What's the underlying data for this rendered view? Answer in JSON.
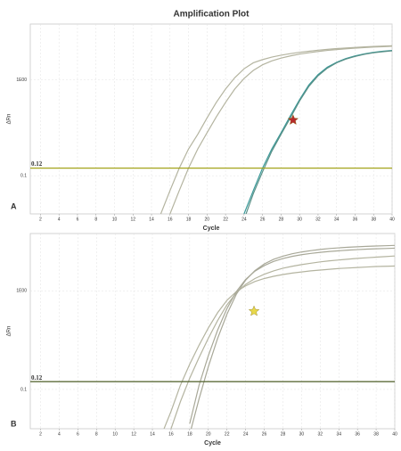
{
  "chart_data": [
    {
      "type": "line",
      "title": "Amplification Plot",
      "panel_label": "A",
      "xlabel": "Cycle",
      "ylabel": "ΔRn",
      "yscale": "log",
      "grid": true,
      "xlim": [
        0.9,
        40
      ],
      "ylim": [
        0.04,
        3.8
      ],
      "xticks": [
        2,
        4,
        6,
        8,
        10,
        12,
        14,
        16,
        18,
        20,
        22,
        24,
        26,
        28,
        30,
        32,
        34,
        36,
        38,
        40
      ],
      "yticks": [
        0.1,
        {
          "value": 1,
          "label": "1E00"
        }
      ],
      "threshold": 0.12,
      "threshold_label": "0.12",
      "threshold_color": "#a3a31c",
      "threshold_label_color": "#9b1c1c",
      "x": [
        14,
        15,
        16,
        17,
        18,
        19,
        20,
        21,
        22,
        23,
        24,
        25,
        26,
        27,
        28,
        29,
        30,
        31,
        32,
        33,
        34,
        35,
        36,
        37,
        38,
        39,
        40
      ],
      "series": [
        {
          "color": "#b4b4a0",
          "values": [
            null,
            0.04,
            0.07,
            0.12,
            0.19,
            0.27,
            0.4,
            0.58,
            0.8,
            1.05,
            1.3,
            1.5,
            1.62,
            1.72,
            1.8,
            1.87,
            1.93,
            1.98,
            2.03,
            2.07,
            2.11,
            2.14,
            2.17,
            2.2,
            2.22,
            2.24,
            2.26
          ]
        },
        {
          "color": "#b4b4a0",
          "values": [
            null,
            null,
            0.04,
            0.07,
            0.12,
            0.19,
            0.28,
            0.41,
            0.58,
            0.8,
            1.03,
            1.25,
            1.43,
            1.57,
            1.68,
            1.77,
            1.85,
            1.91,
            1.97,
            2.02,
            2.06,
            2.1,
            2.13,
            2.16,
            2.19,
            2.21,
            2.23
          ]
        },
        {
          "color": "#3a9a9a",
          "values": [
            null,
            null,
            null,
            null,
            null,
            null,
            null,
            null,
            null,
            null,
            0.04,
            0.07,
            0.12,
            0.19,
            0.28,
            0.42,
            0.62,
            0.88,
            1.13,
            1.35,
            1.52,
            1.66,
            1.77,
            1.86,
            1.93,
            1.98,
            2.02
          ]
        },
        {
          "color": "#5a8f86",
          "values": [
            null,
            null,
            null,
            null,
            null,
            null,
            null,
            null,
            null,
            null,
            0.035,
            0.065,
            0.11,
            0.18,
            0.27,
            0.4,
            0.6,
            0.85,
            1.1,
            1.32,
            1.5,
            1.64,
            1.75,
            1.84,
            1.91,
            1.96,
            2.0
          ]
        }
      ],
      "markers": [
        {
          "shape": "star",
          "color": "#b52a2a",
          "x": 29.3,
          "y": 0.38
        }
      ]
    },
    {
      "type": "line",
      "panel_label": "B",
      "xlabel": "Cycle",
      "ylabel": "ΔRn",
      "yscale": "log",
      "grid": true,
      "xlim": [
        0.9,
        40
      ],
      "ylim": [
        0.04,
        3.8
      ],
      "xticks": [
        2,
        4,
        6,
        8,
        10,
        12,
        14,
        16,
        18,
        20,
        22,
        24,
        26,
        28,
        30,
        32,
        34,
        36,
        38,
        40
      ],
      "yticks": [
        0.1,
        {
          "value": 1,
          "label": "1E00"
        }
      ],
      "threshold": 0.12,
      "threshold_label": "0.12",
      "threshold_color": "#5c6b3a",
      "threshold_label_color": "#9b1c1c",
      "x": [
        14,
        15,
        16,
        17,
        18,
        19,
        20,
        21,
        22,
        23,
        24,
        25,
        26,
        27,
        28,
        29,
        30,
        31,
        32,
        33,
        34,
        35,
        36,
        37,
        38,
        39,
        40
      ],
      "series": [
        {
          "color": "#b4b4a0",
          "values": [
            null,
            0.035,
            0.06,
            0.11,
            0.18,
            0.28,
            0.42,
            0.6,
            0.8,
            0.98,
            1.12,
            1.24,
            1.33,
            1.4,
            1.46,
            1.51,
            1.55,
            1.59,
            1.62,
            1.65,
            1.68,
            1.7,
            1.72,
            1.74,
            1.76,
            1.77,
            1.78
          ]
        },
        {
          "color": "#b4b4a0",
          "values": [
            null,
            null,
            0.04,
            0.075,
            0.13,
            0.21,
            0.33,
            0.5,
            0.72,
            0.95,
            1.16,
            1.33,
            1.47,
            1.59,
            1.69,
            1.77,
            1.84,
            1.9,
            1.96,
            2.01,
            2.05,
            2.09,
            2.13,
            2.16,
            2.19,
            2.22,
            2.25
          ]
        },
        {
          "color": "#a8a898",
          "values": [
            null,
            null,
            null,
            null,
            0.045,
            0.11,
            0.22,
            0.4,
            0.66,
            0.98,
            1.3,
            1.58,
            1.8,
            1.98,
            2.12,
            2.23,
            2.32,
            2.39,
            2.45,
            2.5,
            2.54,
            2.58,
            2.61,
            2.64,
            2.66,
            2.68,
            2.7
          ]
        },
        {
          "color": "#a8a898",
          "values": [
            null,
            null,
            null,
            null,
            0.035,
            0.08,
            0.17,
            0.33,
            0.58,
            0.92,
            1.28,
            1.6,
            1.87,
            2.08,
            2.24,
            2.37,
            2.47,
            2.55,
            2.62,
            2.68,
            2.72,
            2.76,
            2.79,
            2.82,
            2.84,
            2.86,
            2.88
          ]
        }
      ],
      "markers": [
        {
          "shape": "star",
          "color": "#e8d84a",
          "x": 24.9,
          "y": 0.62
        }
      ]
    }
  ]
}
